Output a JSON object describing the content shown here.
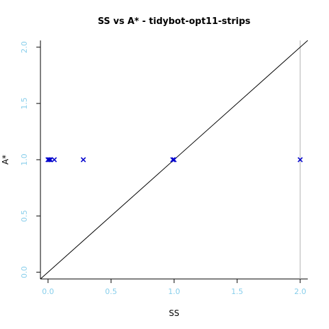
{
  "chart_data": {
    "type": "scatter",
    "title": "SS vs A* - tidybot-opt11-strips",
    "xlabel": "SS",
    "ylabel": "A*",
    "xlim": [
      -0.06,
      2.06
    ],
    "ylim": [
      -0.06,
      2.06
    ],
    "xticks": [
      "0.0",
      "0.5",
      "1.0",
      "1.5",
      "2.0"
    ],
    "yticks": [
      "0.0",
      "0.5",
      "1.0",
      "1.5",
      "2.0"
    ],
    "marker": "x",
    "marker_color": "#0000cd",
    "tick_label_color": "#87ceeb",
    "diagonal": "y = x",
    "vertical_ref_line_x": 2.0,
    "points": [
      {
        "x": 0.0,
        "y": 1.0
      },
      {
        "x": 0.01,
        "y": 1.0
      },
      {
        "x": 0.02,
        "y": 1.0
      },
      {
        "x": 0.05,
        "y": 1.0
      },
      {
        "x": 0.28,
        "y": 1.0
      },
      {
        "x": 0.99,
        "y": 1.0
      },
      {
        "x": 1.0,
        "y": 1.0
      },
      {
        "x": 2.0,
        "y": 1.0
      }
    ]
  }
}
